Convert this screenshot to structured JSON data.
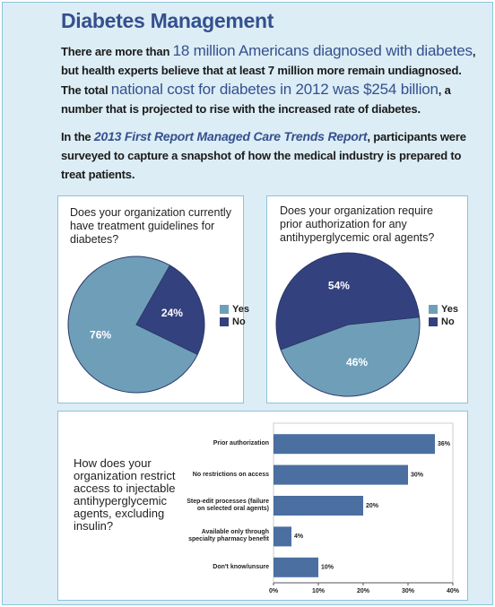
{
  "title": "Diabetes Management",
  "paragraphs": [
    [
      "There are more than ",
      "18 million Americans diagnosed with diabetes",
      ", but health experts believe that at least 7 million more remain undiagnosed. The total ",
      "national cost for diabetes in 2012 was $254 billion",
      ", a number that is projected to rise with the increased rate of diabetes."
    ],
    [
      "In the ",
      "2013 First Report Managed Care Trends Report",
      ", participants were surveyed to capture a snapshot of how the medical industry is prepared to treat patients."
    ]
  ],
  "chart_data": [
    {
      "type": "pie",
      "title": "Does your organization currently have treatment guidelines for diabetes?",
      "categories": [
        "Yes",
        "No"
      ],
      "values": [
        76,
        24
      ],
      "value_labels": [
        "76%",
        "24%"
      ],
      "colors": [
        "#6f9fb8",
        "#34417f"
      ]
    },
    {
      "type": "pie",
      "title": "Does your organization require prior authorization for any antihyperglycemic oral agents?",
      "categories": [
        "Yes",
        "No"
      ],
      "values": [
        46,
        54
      ],
      "value_labels": [
        "46%",
        "54%"
      ],
      "colors": [
        "#6f9fb8",
        "#34417f"
      ]
    },
    {
      "type": "barh",
      "title": "How does your organization restrict access to injectable antihyperglycemic agents, excluding insulin?",
      "categories": [
        "Prior authorization",
        "No restrictions on access",
        "Step-edit processes (failure on selected oral agents)",
        "Available only through specialty pharmacy benefit",
        "Don't know/unsure"
      ],
      "values": [
        36,
        30,
        20,
        4,
        10
      ],
      "value_labels": [
        "36%",
        "30%",
        "20%",
        "4%",
        "10%"
      ],
      "color": "#4a6fa0",
      "xlim": [
        0,
        40
      ],
      "xticks": [
        {
          "value": 0,
          "label": "0%"
        },
        {
          "value": 10,
          "label": "10%"
        },
        {
          "value": 20,
          "label": "20%"
        },
        {
          "value": 30,
          "label": "30%"
        },
        {
          "value": 40,
          "label": "40%"
        }
      ]
    }
  ]
}
